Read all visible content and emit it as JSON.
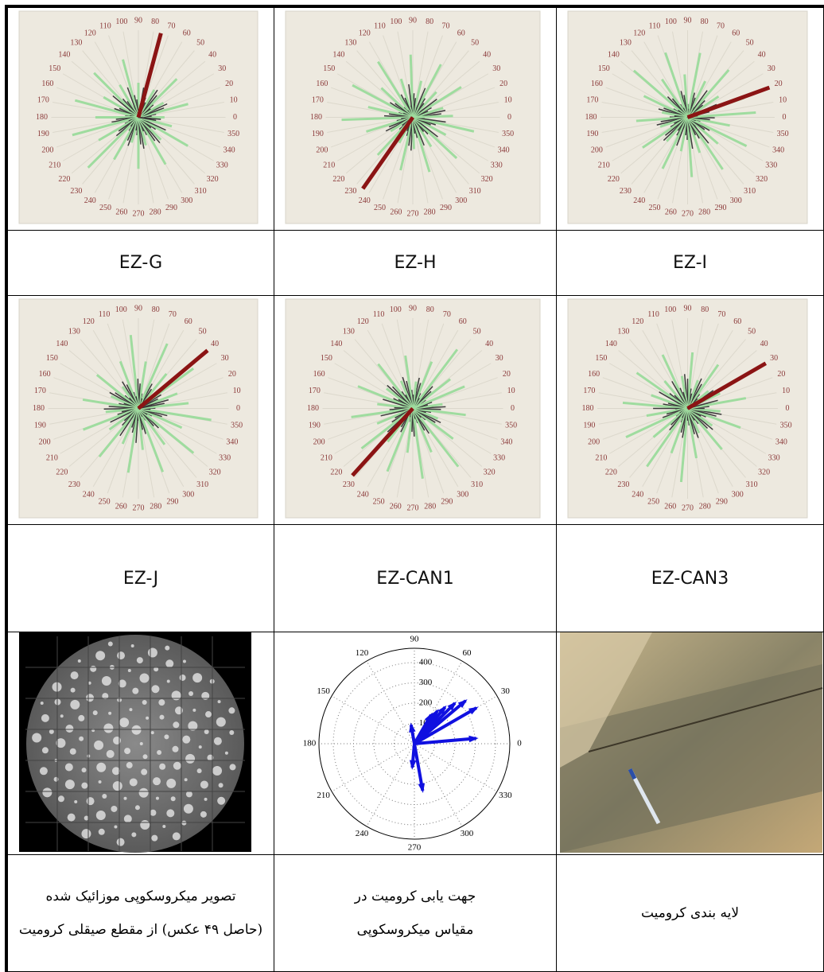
{
  "panels": [
    {
      "label": "EZ-G",
      "dominant_direction": 75
    },
    {
      "label": "EZ-H",
      "dominant_direction": 235
    },
    {
      "label": "EZ-I",
      "dominant_direction": 20
    },
    {
      "label": "EZ-J",
      "dominant_direction": 40
    },
    {
      "label": "EZ-CAN1",
      "dominant_direction": 228
    },
    {
      "label": "EZ-CAN3",
      "dominant_direction": 30
    }
  ],
  "rose_labels": [
    0,
    10,
    20,
    30,
    40,
    50,
    60,
    70,
    80,
    90,
    100,
    110,
    120,
    130,
    140,
    150,
    160,
    170,
    180,
    190,
    200,
    210,
    220,
    230,
    240,
    250,
    260,
    270,
    280,
    290,
    300,
    310,
    320,
    330,
    340,
    350
  ],
  "polar_plot": {
    "angle_labels": [
      0,
      30,
      60,
      90,
      120,
      150,
      180,
      210,
      240,
      270,
      300,
      330
    ],
    "radial_labels": [
      100,
      200,
      300,
      400
    ]
  },
  "captions": [
    [
      "تصویر میکروسکوپی موزائیک شده",
      "(حاصل ۴۹ عکس) از مقطع صیقلی کرومیت"
    ],
    [
      "جهت یابی کرومیت در",
      "مقیاس میکروسکوپی"
    ],
    [
      "لایه بندی کرومیت"
    ]
  ]
}
